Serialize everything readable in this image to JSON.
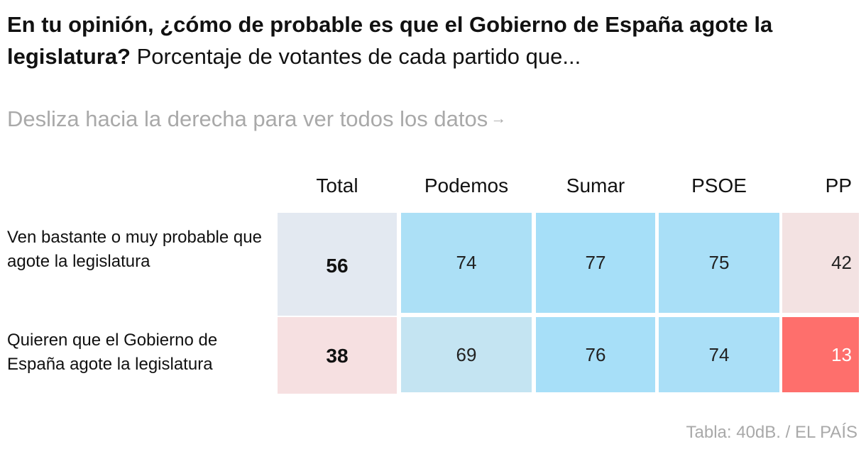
{
  "title": {
    "bold": "En tu opinión, ¿cómo de probable es que el Gobierno de España agote la legislatura?",
    "rest": "Porcentaje de votantes de cada partido que..."
  },
  "hint": "Desliza hacia la derecha para ver todos los datos",
  "hint_arrow": "→",
  "source": "Tabla: 40dB. / EL PAÍS",
  "chart_data": {
    "type": "table",
    "columns": [
      "Total",
      "Podemos",
      "Sumar",
      "PSOE",
      "PP"
    ],
    "rows": [
      {
        "label": "Ven bastante o muy probable que agote la legislatura",
        "values": [
          "56",
          "74",
          "77",
          "75",
          "42"
        ],
        "colors": [
          "#e3e9f1",
          "#ace0f6",
          "#a6dff8",
          "#a9dff7",
          "#f3e2e2"
        ],
        "text_colors": [
          "#111111",
          "#222222",
          "#222222",
          "#222222",
          "#222222"
        ]
      },
      {
        "label": "Quieren que el Gobierno de España agote la legislatura",
        "values": [
          "38",
          "69",
          "76",
          "74",
          "13"
        ],
        "colors": [
          "#f6e0e1",
          "#c4e4f2",
          "#a7dff8",
          "#aadff7",
          "#fe6f6c"
        ],
        "text_colors": [
          "#111111",
          "#222222",
          "#222222",
          "#222222",
          "#ffffff"
        ]
      }
    ]
  }
}
